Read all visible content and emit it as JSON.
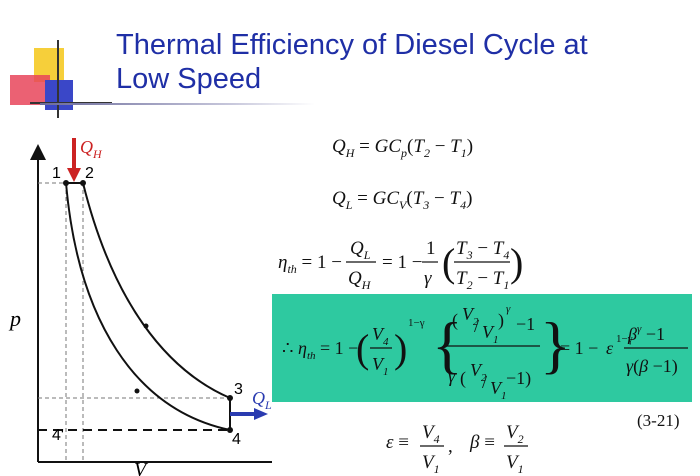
{
  "slide": {
    "title_lines": [
      "Thermal Efficiency of Diesel Cycle at",
      "Low Speed"
    ],
    "colors": {
      "title": "#1f2fa6",
      "highlight": "#2ec9a0",
      "heat_in": "#cc2222",
      "heat_out": "#2a3bb0",
      "curve": "#111111"
    }
  },
  "diagram": {
    "type": "p-V diagram",
    "axis_x": "V",
    "axis_y": "p",
    "points": [
      "1",
      "2",
      "3",
      "4",
      "4'"
    ],
    "heat_in_label": "Q",
    "heat_in_sub": "H",
    "heat_out_label": "Q",
    "heat_out_sub": "L"
  },
  "equations": {
    "q_h": "Q_H = G C_p (T_2 − T_1)",
    "q_l": "Q_L = G C_V (T_3 − T_4)",
    "eta_def": "η_th = 1 − Q_L / Q_H = 1 − (1/γ)·(T_3 − T_4)/(T_2 − T_1)",
    "eta_result": "∴ η_th = 1 − (V_4/V_1)^(1−γ) · {[(V_2/V_1)^γ − 1] / [γ((V_2/V_1) − 1)]} = 1 − ε^(1−γ) · (β^γ − 1)/(γ(β − 1))",
    "definitions": "ε ≡ V_4/V_1 ,  β ≡ V_2/V_1",
    "equation_number": "(3-21)"
  }
}
